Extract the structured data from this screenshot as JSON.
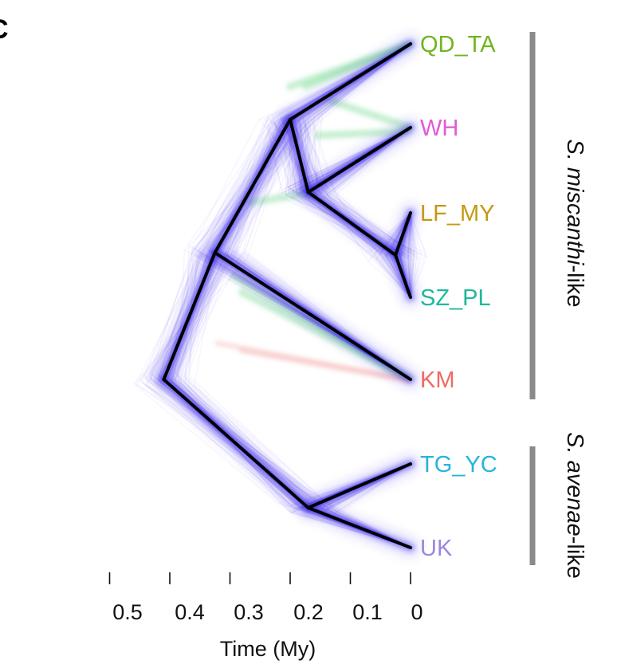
{
  "panel_letter": "C",
  "tips": [
    {
      "name": "QD_TA",
      "color": "#6fb51f"
    },
    {
      "name": "WH",
      "color": "#e15ad6"
    },
    {
      "name": "LF_MY",
      "color": "#c49a12"
    },
    {
      "name": "SZ_PL",
      "color": "#1fb89a"
    },
    {
      "name": "KM",
      "color": "#ef6b62"
    },
    {
      "name": "TG_YC",
      "color": "#27b4dd"
    },
    {
      "name": "UK",
      "color": "#9b86df"
    }
  ],
  "clades": [
    {
      "italic": "S. miscanthi",
      "suffix": "-like",
      "members": [
        "QD_TA",
        "WH",
        "LF_MY",
        "SZ_PL",
        "KM"
      ]
    },
    {
      "italic": "S. avenae",
      "suffix": "-like",
      "members": [
        "TG_YC",
        "UK"
      ]
    }
  ],
  "axis": {
    "title": "Time (My)",
    "ticks": [
      {
        "value": 0.5,
        "label": "0.5"
      },
      {
        "value": 0.4,
        "label": "0.4"
      },
      {
        "value": 0.3,
        "label": "0.3"
      },
      {
        "value": 0.2,
        "label": "0.2"
      },
      {
        "value": 0.1,
        "label": "0.1"
      },
      {
        "value": 0,
        "label": "0"
      }
    ]
  },
  "colors": {
    "consensus_tree": "#000000",
    "cloud": "#3b2ff0",
    "cloud_minor_green": "#5fd07a",
    "cloud_minor_red": "#f07a7a",
    "clade_bar": "#8a8a8a"
  },
  "node_ages_my": {
    "root": 0.41,
    "miscanthi_all": 0.325,
    "qd_wh_lf_sz": 0.2,
    "wh_lf_sz": 0.17,
    "lf_sz": 0.025,
    "avenae": 0.17
  }
}
